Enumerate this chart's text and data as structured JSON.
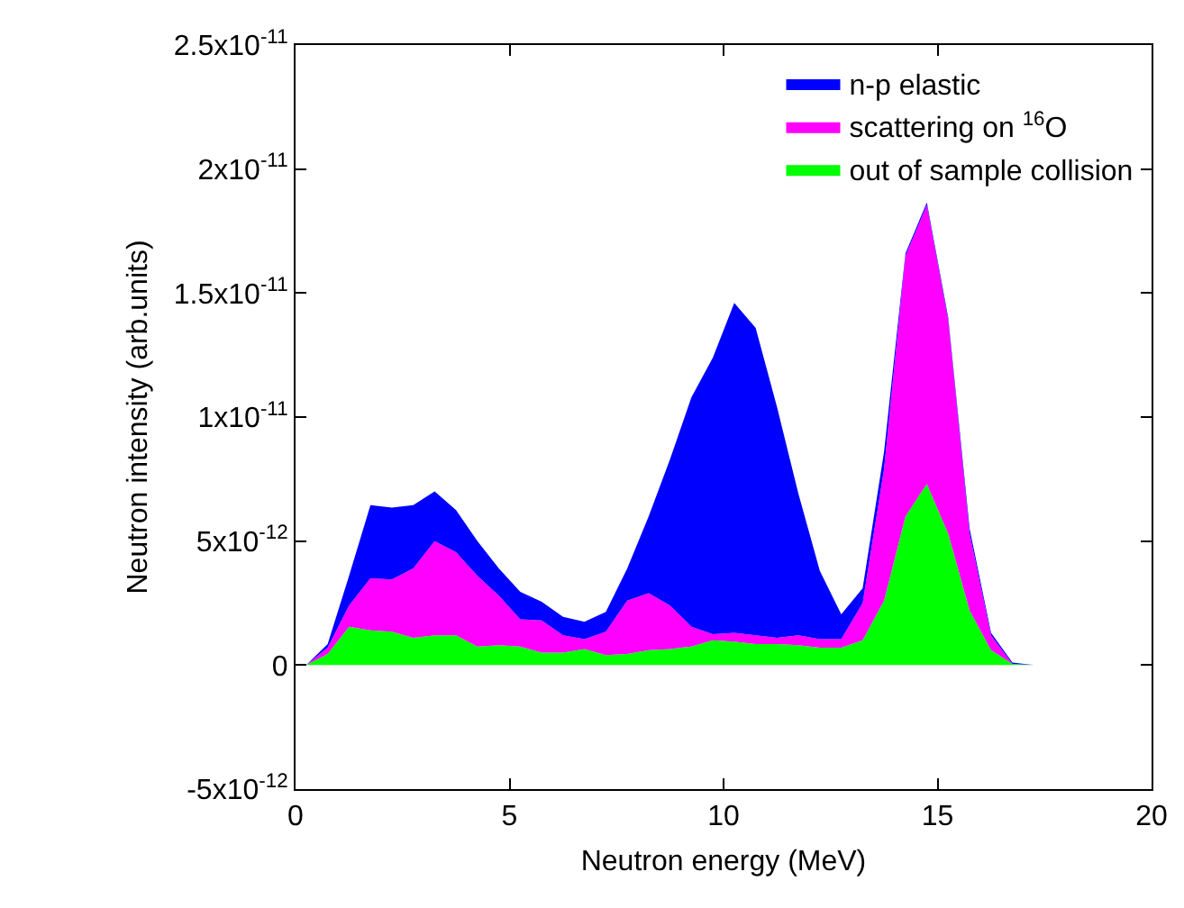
{
  "chart_data": {
    "type": "area",
    "stacked": true,
    "xlabel": "Neutron energy (MeV)",
    "ylabel": "Neutron intensity (arb.units)",
    "x": [
      0.25,
      0.75,
      1.25,
      1.75,
      2.25,
      2.75,
      3.25,
      3.75,
      4.25,
      4.75,
      5.25,
      5.75,
      6.25,
      6.75,
      7.25,
      7.75,
      8.25,
      8.75,
      9.25,
      9.75,
      10.25,
      10.75,
      11.25,
      11.75,
      12.25,
      12.75,
      13.25,
      13.75,
      14.25,
      14.75,
      15.25,
      15.75,
      16.25,
      16.75,
      17.25
    ],
    "series": [
      {
        "name": "out of sample collision",
        "color": "#00ff00",
        "values": [
          0,
          4.5e-13,
          1.55e-12,
          1.4e-12,
          1.35e-12,
          1.1e-12,
          1.2e-12,
          1.2e-12,
          7.5e-13,
          8e-13,
          7.5e-13,
          5e-13,
          5e-13,
          6.5e-13,
          4e-13,
          4.5e-13,
          6e-13,
          6.5e-13,
          7.5e-13,
          1e-12,
          9.5e-13,
          8.5e-13,
          8.5e-13,
          8e-13,
          7e-13,
          7e-13,
          1e-12,
          2.6e-12,
          6e-12,
          7.3e-12,
          5.3e-12,
          2.2e-12,
          6e-13,
          5e-14,
          0
        ]
      },
      {
        "name": "scattering on $^{16}$O",
        "color": "#ff00ff",
        "values": [
          0,
          2.5e-13,
          8.5e-13,
          2.1e-12,
          2.1e-12,
          2.8e-12,
          3.8e-12,
          3.35e-12,
          2.85e-12,
          2e-12,
          1.1e-12,
          1.3e-12,
          7e-13,
          4e-13,
          9.5e-13,
          2.15e-12,
          2.3e-12,
          1.75e-12,
          8e-13,
          2.5e-13,
          3.5e-13,
          3.5e-13,
          2.5e-13,
          4e-13,
          3.5e-13,
          3.5e-13,
          1.5e-12,
          5.3e-12,
          1.05e-11,
          1.125e-11,
          8.6e-12,
          3.1e-12,
          6e-13,
          0,
          0
        ]
      },
      {
        "name": "n-p elastic",
        "color": "#0000ff",
        "values": [
          0,
          1.5e-13,
          1.2e-12,
          2.95e-12,
          2.9e-12,
          2.55e-12,
          2e-12,
          1.7e-12,
          1.4e-12,
          1.1e-12,
          1.1e-12,
          7.5e-13,
          7.5e-13,
          7e-13,
          8e-13,
          1.3e-12,
          3.1e-12,
          5.9e-12,
          9.25e-12,
          1.115e-11,
          1.33e-11,
          1.24e-11,
          9.3e-12,
          5.7e-12,
          2.75e-12,
          1e-12,
          6e-13,
          7e-13,
          1e-13,
          1e-13,
          1e-13,
          2e-13,
          1e-13,
          5e-14,
          0
        ]
      }
    ],
    "xlim": [
      0,
      20
    ],
    "xticks": [
      0,
      5,
      10,
      15,
      20
    ],
    "ylim": [
      -5e-12,
      2.5e-11
    ],
    "yticks": [
      {
        "value": -5e-12,
        "label": "-5x10$^{-12}$"
      },
      0,
      {
        "value": 5e-12,
        "label": "5x10$^{-12}$"
      },
      {
        "value": 1e-11,
        "label": "1x10$^{-11}$"
      },
      {
        "value": 1.5e-11,
        "label": "1.5x10$^{-11}$"
      },
      {
        "value": 2e-11,
        "label": "2x10$^{-11}$"
      },
      {
        "value": 2.5e-11,
        "label": "2.5x10$^{-11}$"
      }
    ],
    "grid": false,
    "legend": "top right"
  }
}
